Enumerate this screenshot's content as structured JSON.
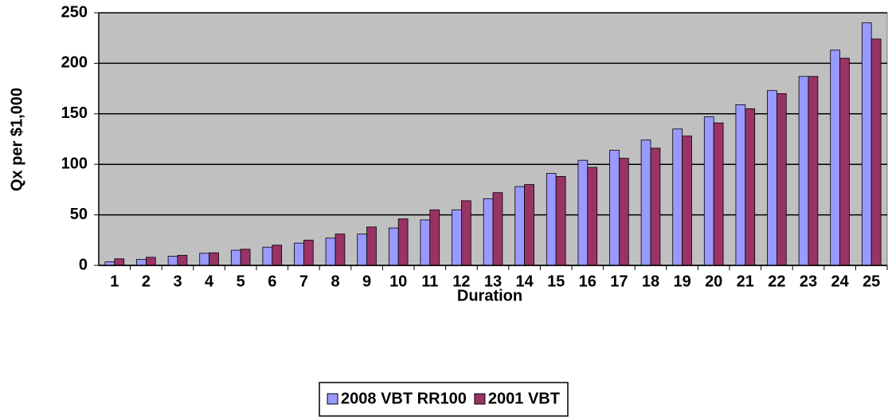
{
  "chart_data": {
    "type": "bar",
    "x_label": "Duration",
    "y_label": "Qx per $1,000",
    "categories": [
      "1",
      "2",
      "3",
      "4",
      "5",
      "6",
      "7",
      "8",
      "9",
      "10",
      "11",
      "12",
      "13",
      "14",
      "15",
      "16",
      "17",
      "18",
      "19",
      "20",
      "21",
      "22",
      "23",
      "24",
      "25"
    ],
    "series": [
      {
        "name": "2008 VBT RR100",
        "color": "#9999ff",
        "values": [
          3.5,
          6,
          9,
          12,
          15,
          18,
          22,
          27,
          31,
          37,
          45,
          55,
          66,
          78,
          91,
          104,
          114,
          124,
          135,
          147,
          159,
          173,
          187,
          213,
          240
        ]
      },
      {
        "name": "2001 VBT",
        "color": "#993366",
        "values": [
          6.5,
          8,
          10,
          12.5,
          16,
          20,
          25,
          31,
          38,
          46,
          55,
          64,
          72,
          80,
          88,
          97,
          106,
          116,
          128,
          141,
          155,
          170,
          187,
          205,
          224
        ]
      }
    ],
    "ylim": [
      0,
      250
    ],
    "yticks": [
      0,
      50,
      100,
      150,
      200,
      250
    ],
    "grid": true,
    "legend": "bottom",
    "plot_background": "#c0c0c0"
  }
}
